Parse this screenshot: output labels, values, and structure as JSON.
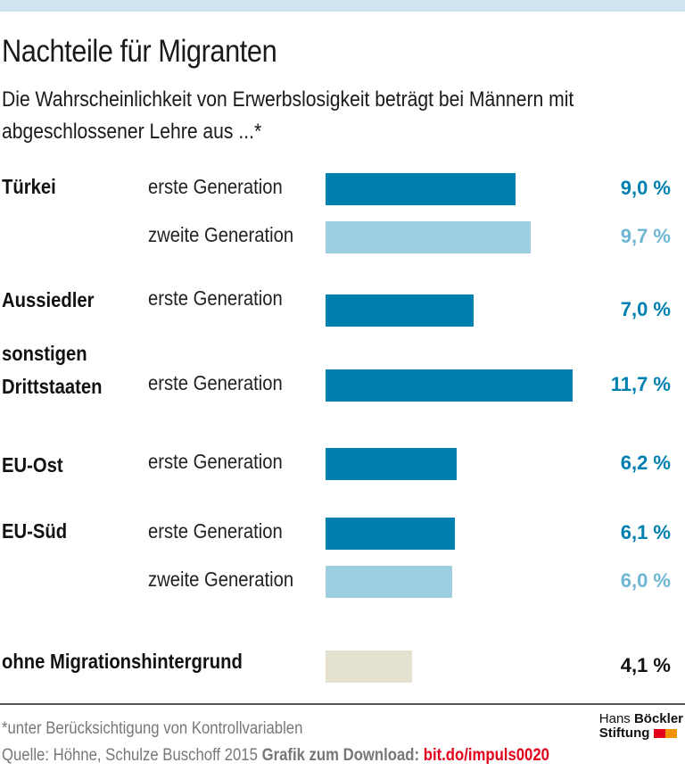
{
  "title": "Nachteile für Migranten",
  "subtitle": "Die Wahrscheinlichkeit von Erwerbslosigkeit beträgt bei Männern mit abgeschlossener Lehre aus ...*",
  "colors": {
    "first_generation": "#0080b0",
    "second_generation": "#9dcde0",
    "no_migration": "#e4e1d0",
    "top_band": "#cfe4ee",
    "link": "#e2001a"
  },
  "chart_data": {
    "type": "bar",
    "orientation": "horizontal",
    "unit": "%",
    "xlim": [
      0,
      12
    ],
    "rows": [
      {
        "group": "Türkei",
        "label": "erste Generation",
        "value": 9.0,
        "value_label": "9,0 %",
        "kind": "first"
      },
      {
        "group": "",
        "label": "zweite Generation",
        "value": 9.7,
        "value_label": "9,7 %",
        "kind": "second"
      },
      {
        "group": "Aussiedler",
        "label": "erste Generation",
        "value": 7.0,
        "value_label": "7,0 %",
        "kind": "first"
      },
      {
        "group": "sonstigen Drittstaaten",
        "label": "erste Generation",
        "value": 11.7,
        "value_label": "11,7 %",
        "kind": "first"
      },
      {
        "group": "EU-Ost",
        "label": "erste Generation",
        "value": 6.2,
        "value_label": "6,2 %",
        "kind": "first"
      },
      {
        "group": "EU-Süd",
        "label": "erste Generation",
        "value": 6.1,
        "value_label": "6,1 %",
        "kind": "first"
      },
      {
        "group": "",
        "label": "zweite Generation",
        "value": 6.0,
        "value_label": "6,0 %",
        "kind": "second"
      },
      {
        "group": "ohne Migrationshintergrund",
        "label": "",
        "value": 4.1,
        "value_label": "4,1 %",
        "kind": "none"
      }
    ]
  },
  "footer": {
    "note": "*unter Berücksichtigung von Kontrollvariablen",
    "source": "Quelle:  Höhne, Schulze Buschoff 2015",
    "download_label": "Grafik zum Download:",
    "download_link": "bit.do/impuls0020",
    "logo": {
      "line1a": "Hans",
      "line1b": "Böckler",
      "line2": "Stiftung"
    }
  }
}
